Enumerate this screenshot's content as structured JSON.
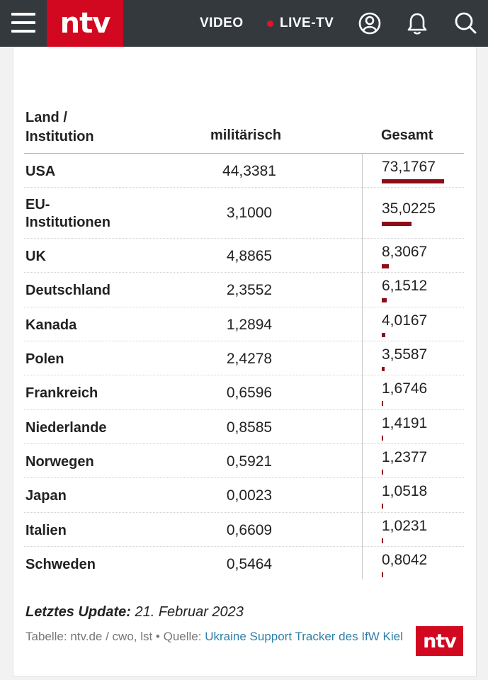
{
  "header": {
    "logo": "ntv",
    "nav_video": "VIDEO",
    "nav_live": "LIVE-TV"
  },
  "table": {
    "col_land_line1": "Land /",
    "col_land_line2": "Institution",
    "col_mil": "militärisch",
    "col_gesamt": "Gesamt",
    "rows": [
      {
        "land": "USA",
        "mil": "44,3381",
        "gesamt": "73,1767",
        "gesamt_value": 73.1767
      },
      {
        "land_line1": "EU-",
        "land_line2": "Institutionen",
        "mil": "3,1000",
        "gesamt": "35,0225",
        "gesamt_value": 35.0225
      },
      {
        "land": "UK",
        "mil": "4,8865",
        "gesamt": "8,3067",
        "gesamt_value": 8.3067
      },
      {
        "land": "Deutschland",
        "mil": "2,3552",
        "gesamt": "6,1512",
        "gesamt_value": 6.1512
      },
      {
        "land": "Kanada",
        "mil": "1,2894",
        "gesamt": "4,0167",
        "gesamt_value": 4.0167
      },
      {
        "land": "Polen",
        "mil": "2,4278",
        "gesamt": "3,5587",
        "gesamt_value": 3.5587
      },
      {
        "land": "Frankreich",
        "mil": "0,6596",
        "gesamt": "1,6746",
        "gesamt_value": 1.6746
      },
      {
        "land": "Niederlande",
        "mil": "0,8585",
        "gesamt": "1,4191",
        "gesamt_value": 1.4191
      },
      {
        "land": "Norwegen",
        "mil": "0,5921",
        "gesamt": "1,2377",
        "gesamt_value": 1.2377
      },
      {
        "land": "Japan",
        "mil": "0,0023",
        "gesamt": "1,0518",
        "gesamt_value": 1.0518
      },
      {
        "land": "Italien",
        "mil": "0,6609",
        "gesamt": "1,0231",
        "gesamt_value": 1.0231
      },
      {
        "land": "Schweden",
        "mil": "0,5464",
        "gesamt": "0,8042",
        "gesamt_value": 0.8042
      }
    ]
  },
  "footer": {
    "update_label": "Letztes Update:",
    "update_date": "21. Februar 2023",
    "source_prefix": "Tabelle: ntv.de / cwo, lst • Quelle:",
    "source_link": "Ukraine Support Tracker des IfW Kiel",
    "logo": "ntv"
  },
  "colors": {
    "header_bg": "#34393e",
    "brand_red": "#d1081f",
    "bar": "#8c0d17",
    "link": "#2d7ea8"
  },
  "icons": [
    "menu-icon",
    "user-icon",
    "bell-icon",
    "search-icon"
  ]
}
